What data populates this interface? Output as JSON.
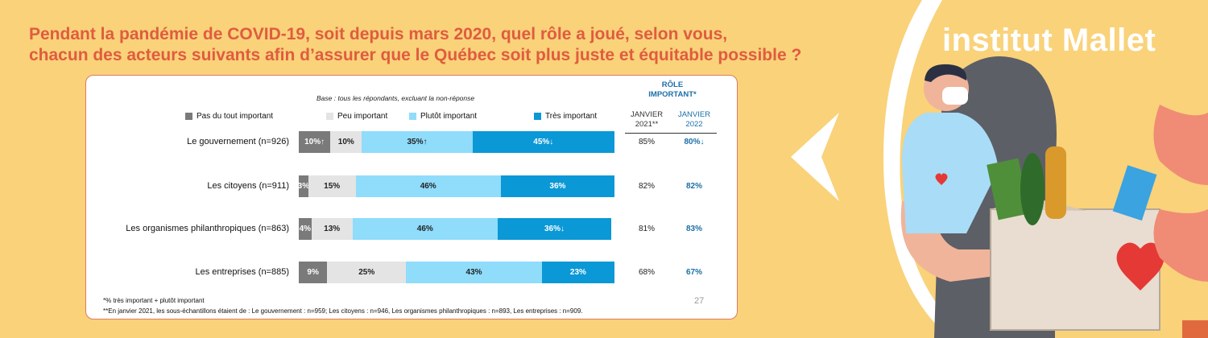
{
  "question": {
    "line1": "Pendant la pandémie de COVID-19, soit depuis mars 2020, quel rôle a joué, selon vous,",
    "line2": "chacun des acteurs suivants afin d’assurer que le Québec soit plus juste et équitable possible ?"
  },
  "logo": "institut Mallet",
  "base_note": "Base : tous les répondants, excluant la non-réponse",
  "page_number": "27",
  "colors": {
    "background": "#f9d27a",
    "accent": "#e05c3f",
    "role_blue": "#1b6fa8"
  },
  "chart_data": {
    "type": "bar",
    "orientation": "horizontal",
    "stacked": true,
    "percent": true,
    "legend": [
      {
        "label": "Pas du tout important",
        "color": "#7a7a7a"
      },
      {
        "label": "Peu important",
        "color": "#e4e4e4"
      },
      {
        "label": "Plutôt important",
        "color": "#8fdcfb"
      },
      {
        "label": "Très important",
        "color": "#0b98d6"
      }
    ],
    "role_header": {
      "title_line1": "RÔLE",
      "title_line2": "IMPORTANT*",
      "col1_line1": "JANVIER",
      "col1_line2": "2021**",
      "col2_line1": "JANVIER",
      "col2_line2": "2022"
    },
    "rows": [
      {
        "label": "Le gouvernement (n=926)",
        "values": [
          10,
          10,
          35,
          45
        ],
        "labels": [
          "10%↑",
          "10%",
          "35%↑",
          "45%↓"
        ],
        "jan2021": "85%",
        "jan2022": "80%↓"
      },
      {
        "label": "Les citoyens (n=911)",
        "values": [
          3,
          15,
          46,
          36
        ],
        "labels": [
          "3%",
          "15%",
          "46%",
          "36%"
        ],
        "jan2021": "82%",
        "jan2022": "82%"
      },
      {
        "label": "Les organismes philanthropiques (n=863)",
        "values": [
          4,
          13,
          46,
          36
        ],
        "labels": [
          "4%",
          "13%",
          "46%",
          "36%↓"
        ],
        "jan2021": "81%",
        "jan2022": "83%"
      },
      {
        "label": "Les entreprises (n=885)",
        "values": [
          9,
          25,
          43,
          23
        ],
        "labels": [
          "9%",
          "25%",
          "43%",
          "23%"
        ],
        "jan2021": "68%",
        "jan2022": "67%"
      }
    ],
    "footnote1": "*% très important + plutôt important",
    "footnote2": "**En janvier 2021, les sous-échantillons étaient de : Le gouvernement : n=959; Les citoyens : n=946, Les organismes philanthropiques : n=893, Les entreprises : n=909."
  }
}
